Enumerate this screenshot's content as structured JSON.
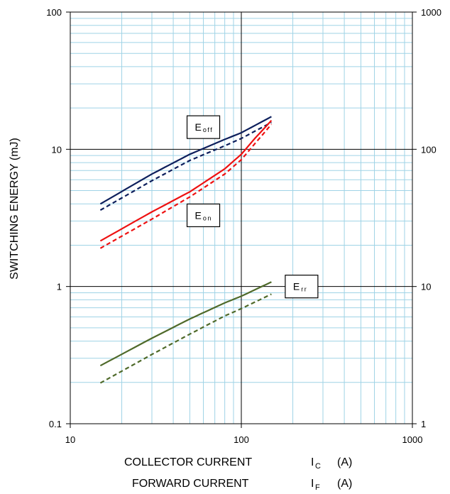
{
  "chart_data": {
    "type": "line",
    "xscale": "log",
    "yscale": "log",
    "xlim": [
      10,
      1000
    ],
    "ylim": [
      0.1,
      100
    ],
    "y2lim": [
      1,
      1000
    ],
    "x_ticks": [
      "10",
      "100",
      "1000"
    ],
    "y_ticks": [
      "0.1",
      "1",
      "10",
      "100"
    ],
    "y2_ticks": [
      "1",
      "10",
      "100",
      "1000"
    ],
    "ylabel": "SWITCHING ENERGY (mJ)",
    "xlabel_main": "COLLECTOR CURRENT",
    "xlabel_main_sub_base": "I",
    "xlabel_main_sub": "C",
    "xlabel_main_unit": "(A)",
    "xlabel_second": "FORWARD CURRENT",
    "xlabel_second_sub_base": "I",
    "xlabel_second_sub": "F",
    "xlabel_second_unit": "(A)",
    "grid": true,
    "colors": {
      "eoff": "#0d1f5c",
      "eon": "#ee1111",
      "err": "#4f6a2a",
      "grid_minor": "#9fd3e6",
      "grid_major": "#000000"
    },
    "series": [
      {
        "label": "E off",
        "color": "#0d1f5c",
        "dash": false,
        "axis": "left",
        "x": [
          15,
          30,
          50,
          80,
          100,
          150
        ],
        "y": [
          4.0,
          6.6,
          9.2,
          11.8,
          13.2,
          17.3
        ]
      },
      {
        "label": "E off",
        "color": "#0d1f5c",
        "dash": true,
        "axis": "left",
        "x": [
          15,
          30,
          50,
          80,
          100,
          150
        ],
        "y": [
          3.6,
          5.9,
          8.3,
          10.6,
          12.0,
          15.7
        ]
      },
      {
        "label": "E on",
        "color": "#ee1111",
        "dash": false,
        "axis": "left",
        "x": [
          15,
          30,
          50,
          80,
          100,
          120,
          150
        ],
        "y": [
          2.15,
          3.5,
          4.9,
          7.2,
          9.2,
          12.0,
          16.2
        ]
      },
      {
        "label": "E on",
        "color": "#ee1111",
        "dash": true,
        "axis": "left",
        "x": [
          15,
          30,
          50,
          80,
          100,
          120,
          150
        ],
        "y": [
          1.9,
          3.1,
          4.5,
          6.6,
          8.4,
          11.0,
          15.2
        ]
      },
      {
        "label": "E rr",
        "color": "#4f6a2a",
        "dash": false,
        "axis": "right",
        "x": [
          15,
          30,
          50,
          80,
          100,
          150
        ],
        "y": [
          2.65,
          4.2,
          5.8,
          7.6,
          8.5,
          10.8
        ]
      },
      {
        "label": "E rr",
        "color": "#4f6a2a",
        "dash": true,
        "axis": "right",
        "x": [
          15,
          30,
          50,
          80,
          100,
          150
        ],
        "y": [
          1.98,
          3.2,
          4.5,
          6.1,
          6.9,
          8.8
        ]
      }
    ],
    "annotations": [
      {
        "base": "E",
        "sub": "off",
        "x": 60,
        "y": 14.5
      },
      {
        "base": "E",
        "sub": "on",
        "x": 60,
        "y": 3.3
      },
      {
        "base": "E",
        "sub": "rr",
        "x": 225,
        "y": 1.0
      }
    ]
  }
}
